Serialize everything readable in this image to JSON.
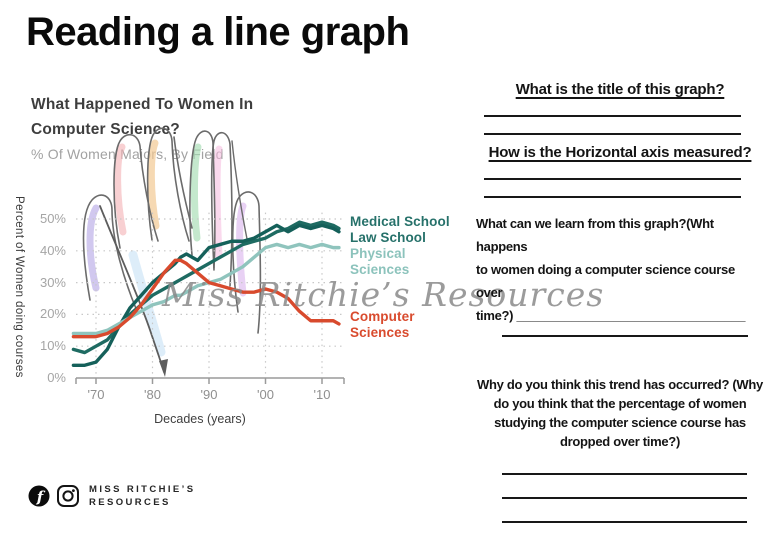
{
  "page": {
    "title": "Reading a line graph"
  },
  "chart": {
    "title": "What Happened To Women In\nComputer Science?",
    "subtitle": "% Of Women Majors, By Field",
    "y_axis_label": "Percent of Women doing courses",
    "x_axis_label": "Decades (years)",
    "y_ticks": [
      "50%",
      "40%",
      "30%",
      "20%",
      "10%",
      "0%"
    ],
    "x_ticks": [
      "'70",
      "'80",
      "'90",
      "'00",
      "'10"
    ],
    "legend": [
      {
        "label": "Medical School",
        "color": "#26716a"
      },
      {
        "label": "Law School",
        "color": "#26716a"
      },
      {
        "label": "Physical\nSciences",
        "color": "#8cc3bc"
      },
      {
        "label": "Computer\nSciences",
        "color": "#d94b2e"
      }
    ]
  },
  "chart_data": {
    "type": "line",
    "title": "What Happened To Women In Computer Science?",
    "subtitle": "% Of Women Majors, By Field",
    "xlabel": "Decades (years)",
    "ylabel": "Percent of Women doing courses",
    "ylim": [
      0,
      52
    ],
    "x_range": [
      1966,
      2013
    ],
    "grid": "dotted",
    "legend_position": "right",
    "y_tick_values": [
      50,
      40,
      30,
      20,
      10,
      0
    ],
    "x_tick_years": [
      1970,
      1980,
      1990,
      2000,
      2010
    ],
    "x": [
      1966,
      1968,
      1970,
      1972,
      1974,
      1976,
      1978,
      1980,
      1982,
      1984,
      1985,
      1986,
      1988,
      1990,
      1992,
      1994,
      1996,
      1998,
      2000,
      2002,
      2004,
      2006,
      2008,
      2010,
      2012,
      2013
    ],
    "series": [
      {
        "name": "Medical School",
        "color": "#1e6b62",
        "values": [
          9,
          8,
          10,
          12,
          16,
          20,
          23,
          26,
          28,
          30,
          31,
          32,
          34,
          36,
          38,
          40,
          42,
          43,
          44,
          46,
          47,
          49,
          48,
          49,
          48,
          47
        ]
      },
      {
        "name": "Law School",
        "color": "#15605a",
        "values": [
          4,
          4,
          5,
          9,
          16,
          22,
          26,
          30,
          33,
          36,
          38,
          39,
          37,
          41,
          42,
          43,
          43,
          44,
          46,
          48,
          46,
          48,
          47,
          48,
          47,
          46
        ]
      },
      {
        "name": "Physical Sciences",
        "color": "#8fc4bd",
        "values": [
          14,
          14,
          14,
          15,
          17,
          19,
          21,
          23,
          24,
          26,
          26,
          27,
          29,
          30,
          31,
          33,
          35,
          38,
          41,
          42,
          41,
          42,
          41,
          42,
          41,
          41
        ]
      },
      {
        "name": "Computer Sciences",
        "color": "#d84a2d",
        "values": [
          13,
          13,
          13,
          14,
          16,
          19,
          23,
          28,
          33,
          37,
          37,
          36,
          33,
          30,
          29,
          28,
          27,
          27,
          28,
          27,
          25,
          21,
          18,
          18,
          18,
          17
        ]
      }
    ]
  },
  "watermark": {
    "text": "Miss Ritchie’s Resources",
    "color": "#8a8a8a"
  },
  "questions": [
    {
      "heading": "What is the title of this graph?",
      "lines": 2,
      "align": "center",
      "underline": true
    },
    {
      "heading": "How is the Horizontal axis measured?",
      "lines": 2,
      "align": "center",
      "underline": true
    },
    {
      "heading": "What can we learn from this graph?(Wht happens\nto women doing a computer science course over\ntime?) _________________________________",
      "lines": 1,
      "align": "left",
      "underline": false
    },
    {
      "heading": "Why do you think this trend has occurred? (Why\ndo you think that the percentage of women\nstudying the computer science course has\ndropped over time?)",
      "lines": 4,
      "align": "center",
      "underline": false
    }
  ],
  "footer": {
    "line1": "MISS RITCHIE’S",
    "line2": "RESOURCES",
    "facebook_glyph": "f"
  }
}
